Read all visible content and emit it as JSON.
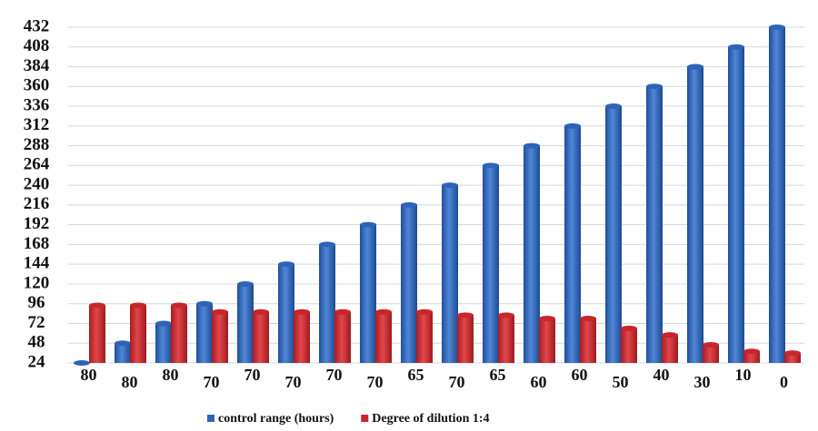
{
  "chart_data": {
    "type": "bar",
    "categories": [
      "80",
      "80",
      "80",
      "70",
      "70",
      "70",
      "70",
      "70",
      "65",
      "70",
      "65",
      "60",
      "60",
      "50",
      "40",
      "30",
      "10",
      "0"
    ],
    "series": [
      {
        "name": "control range (hours)",
        "color": "#2e63b8",
        "values": [
          24,
          48,
          72,
          96,
          120,
          144,
          168,
          192,
          216,
          240,
          264,
          288,
          312,
          336,
          360,
          384,
          408,
          432
        ]
      },
      {
        "name": "Degree of dilution 1:4",
        "color": "#c8262b",
        "values": [
          94,
          94,
          94,
          86,
          86,
          86,
          86,
          86,
          86,
          82,
          82,
          78,
          78,
          66,
          58,
          46,
          38,
          36
        ]
      }
    ],
    "ylim": [
      24,
      432
    ],
    "yticks": [
      24,
      48,
      72,
      96,
      120,
      144,
      168,
      192,
      216,
      240,
      264,
      288,
      312,
      336,
      360,
      384,
      408,
      432
    ],
    "grid": true
  }
}
